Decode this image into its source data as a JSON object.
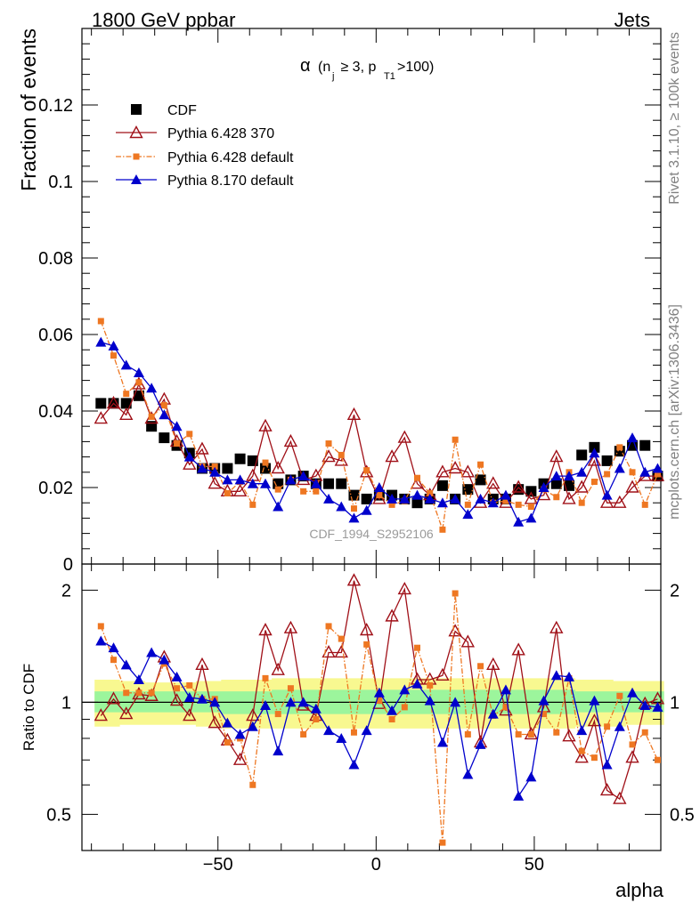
{
  "header": {
    "left": "1800 GeV ppbar",
    "right": "Jets"
  },
  "side_labels": {
    "rivet": "Rivet 3.1.10, ≥ 100k events",
    "mcplots": "mcplots.cern.ch [arXiv:1306.3436]"
  },
  "watermark": "CDF_1994_S2952106",
  "chart_data": [
    {
      "type": "line",
      "panel": "main",
      "title": "α (n_j ≥ 3, p_T1 >100)",
      "title_parts": {
        "alpha": "α",
        "open": "(n",
        "sub_j": "j",
        "mid": " ≥ 3, p",
        "sub_t1": "T1",
        "close": ">100)"
      },
      "xlabel": "alpha",
      "ylabel": "Fraction of events",
      "xlim": [
        -93,
        90
      ],
      "ylim": [
        0,
        0.14
      ],
      "yticks": [
        0,
        0.02,
        0.04,
        0.06,
        0.08,
        0.1,
        0.12
      ],
      "ytick_labels": [
        "0",
        "0.02",
        "0.04",
        "0.06",
        "0.08",
        "0.1",
        "0.12"
      ],
      "x": [
        -87,
        -83,
        -79,
        -75,
        -71,
        -67,
        -63,
        -59,
        -55,
        -51,
        -47,
        -43,
        -39,
        -35,
        -31,
        -27,
        -23,
        -19,
        -15,
        -11,
        -7,
        -3,
        1,
        5,
        9,
        13,
        17,
        21,
        25,
        29,
        33,
        37,
        41,
        45,
        49,
        53,
        57,
        61,
        65,
        69,
        73,
        77,
        81,
        85,
        89
      ],
      "legend": [
        "CDF",
        "Pythia 6.428 370",
        "Pythia 6.428 default",
        "Pythia 8.170 default"
      ],
      "series": [
        {
          "name": "CDF",
          "color": "#000000",
          "values": [
            0.042,
            0.042,
            0.042,
            0.044,
            0.036,
            0.033,
            0.031,
            0.029,
            0.025,
            0.025,
            0.025,
            0.0275,
            0.027,
            0.025,
            0.021,
            0.022,
            0.023,
            0.021,
            0.021,
            0.021,
            0.018,
            0.017,
            0.018,
            0.018,
            0.017,
            0.016,
            0.017,
            0.0205,
            0.017,
            0.0195,
            0.022,
            0.017,
            0.017,
            0.0195,
            0.019,
            0.021,
            0.021,
            0.0205,
            0.0285,
            0.0305,
            0.027,
            0.0295,
            0.031,
            0.031,
            0.023
          ]
        },
        {
          "name": "Pythia 6.428 370",
          "color": "#a01018",
          "values": [
            0.038,
            0.042,
            0.039,
            0.047,
            0.038,
            0.043,
            0.032,
            0.026,
            0.03,
            0.021,
            0.019,
            0.019,
            0.023,
            0.036,
            0.025,
            0.032,
            0.022,
            0.023,
            0.028,
            0.027,
            0.039,
            0.024,
            0.017,
            0.028,
            0.033,
            0.021,
            0.018,
            0.024,
            0.025,
            0.024,
            0.016,
            0.021,
            0.016,
            0.02,
            0.017,
            0.018,
            0.028,
            0.017,
            0.02,
            0.027,
            0.016,
            0.016,
            0.02,
            0.023,
            0.023
          ]
        },
        {
          "name": "Pythia 6.428 default",
          "color": "#ee7722",
          "values": [
            0.0635,
            0.0545,
            0.0445,
            0.0475,
            0.0385,
            0.0415,
            0.0315,
            0.034,
            0.0255,
            0.0255,
            0.0185,
            0.0215,
            0.0155,
            0.0265,
            0.0195,
            0.022,
            0.019,
            0.019,
            0.0315,
            0.0285,
            0.0145,
            0.0245,
            0.018,
            0.0155,
            0.0165,
            0.0225,
            0.0185,
            0.009,
            0.0325,
            0.0155,
            0.026,
            0.016,
            0.0165,
            0.0155,
            0.015,
            0.0195,
            0.0175,
            0.024,
            0.016,
            0.0215,
            0.0235,
            0.0305,
            0.024,
            0.0155,
            0.0235
          ]
        },
        {
          "name": "Pythia 8.170 default",
          "color": "#0000cc",
          "values": [
            0.058,
            0.057,
            0.052,
            0.05,
            0.046,
            0.039,
            0.036,
            0.028,
            0.025,
            0.024,
            0.022,
            0.022,
            0.021,
            0.021,
            0.015,
            0.022,
            0.023,
            0.021,
            0.017,
            0.015,
            0.012,
            0.014,
            0.02,
            0.017,
            0.017,
            0.018,
            0.017,
            0.016,
            0.017,
            0.013,
            0.017,
            0.016,
            0.018,
            0.011,
            0.012,
            0.02,
            0.023,
            0.023,
            0.024,
            0.029,
            0.018,
            0.025,
            0.033,
            0.024,
            0.025
          ]
        }
      ]
    },
    {
      "type": "line",
      "panel": "ratio",
      "xlabel": "alpha",
      "ylabel": "Ratio to CDF",
      "xlim": [
        -93,
        90
      ],
      "ylim": [
        0.4,
        2.35
      ],
      "xticks": [
        -50,
        0,
        50
      ],
      "xtick_labels": [
        "−50",
        "0",
        "50"
      ],
      "yticks": [
        0.5,
        1,
        2
      ],
      "ytick_labels": [
        "0.5",
        "1",
        "2"
      ],
      "x": [
        -87,
        -83,
        -79,
        -75,
        -71,
        -67,
        -63,
        -59,
        -55,
        -51,
        -47,
        -43,
        -39,
        -35,
        -31,
        -27,
        -23,
        -19,
        -15,
        -11,
        -7,
        -3,
        1,
        5,
        9,
        13,
        17,
        21,
        25,
        29,
        33,
        37,
        41,
        45,
        49,
        53,
        57,
        61,
        65,
        69,
        73,
        77,
        81,
        85,
        89
      ],
      "bands": {
        "band_yellow_upper": [
          1.15,
          1.15,
          1.14,
          1.14,
          1.13,
          1.13,
          1.13,
          1.13,
          1.14,
          1.14,
          1.15,
          1.15,
          1.15,
          1.15,
          1.16,
          1.16,
          1.16,
          1.16,
          1.16,
          1.16,
          1.16,
          1.16,
          1.16,
          1.16,
          1.16,
          1.16,
          1.16,
          1.16,
          1.16,
          1.16,
          1.16,
          1.16,
          1.16,
          1.16,
          1.16,
          1.16,
          1.16,
          1.16,
          1.15,
          1.15,
          1.15,
          1.14,
          1.14,
          1.14,
          1.14
        ],
        "band_yellow_lower": [
          0.86,
          0.86,
          0.87,
          0.87,
          0.87,
          0.87,
          0.87,
          0.87,
          0.86,
          0.86,
          0.85,
          0.85,
          0.85,
          0.85,
          0.85,
          0.85,
          0.85,
          0.85,
          0.85,
          0.85,
          0.85,
          0.85,
          0.85,
          0.85,
          0.85,
          0.85,
          0.85,
          0.85,
          0.85,
          0.85,
          0.85,
          0.85,
          0.85,
          0.85,
          0.85,
          0.85,
          0.85,
          0.85,
          0.86,
          0.86,
          0.86,
          0.86,
          0.87,
          0.87,
          0.87
        ],
        "band_green_upper": [
          1.07,
          1.07,
          1.07,
          1.07,
          1.07,
          1.07,
          1.07,
          1.07,
          1.07,
          1.07,
          1.07,
          1.07,
          1.07,
          1.07,
          1.08,
          1.08,
          1.08,
          1.08,
          1.08,
          1.08,
          1.08,
          1.08,
          1.08,
          1.08,
          1.08,
          1.08,
          1.08,
          1.08,
          1.08,
          1.08,
          1.08,
          1.08,
          1.08,
          1.08,
          1.08,
          1.08,
          1.08,
          1.08,
          1.07,
          1.07,
          1.07,
          1.07,
          1.07,
          1.07,
          1.07
        ],
        "band_green_lower": [
          0.94,
          0.94,
          0.94,
          0.94,
          0.94,
          0.94,
          0.94,
          0.94,
          0.94,
          0.94,
          0.93,
          0.93,
          0.93,
          0.93,
          0.93,
          0.93,
          0.93,
          0.93,
          0.93,
          0.93,
          0.93,
          0.93,
          0.93,
          0.93,
          0.93,
          0.93,
          0.93,
          0.93,
          0.93,
          0.93,
          0.93,
          0.93,
          0.93,
          0.93,
          0.93,
          0.93,
          0.93,
          0.93,
          0.94,
          0.94,
          0.94,
          0.94,
          0.94,
          0.94,
          0.94
        ]
      },
      "series": [
        {
          "name": "Pythia 6.428 370",
          "color": "#a01018",
          "values": [
            0.92,
            1.02,
            0.93,
            1.05,
            1.04,
            1.32,
            1.01,
            0.92,
            1.26,
            0.88,
            0.79,
            0.7,
            0.92,
            1.56,
            1.22,
            1.58,
            0.98,
            0.92,
            1.36,
            1.36,
            2.12,
            1.56,
            0.99,
            1.7,
            2.01,
            1.15,
            1.15,
            1.18,
            1.55,
            1.45,
            0.78,
            1.26,
            0.95,
            1.38,
            0.82,
            0.97,
            1.58,
            0.81,
            0.71,
            0.89,
            0.58,
            0.55,
            0.71,
            0.99,
            1.02
          ]
        },
        {
          "name": "Pythia 6.428 default",
          "color": "#ee7722",
          "values": [
            1.6,
            1.3,
            1.06,
            1.06,
            1.06,
            1.27,
            1.09,
            1.11,
            1.02,
            1.02,
            0.78,
            0.8,
            0.6,
            1.16,
            0.93,
            1.09,
            0.82,
            0.9,
            1.6,
            1.48,
            0.83,
            1.43,
            1.01,
            0.9,
            0.97,
            1.4,
            1.11,
            0.42,
            1.96,
            0.82,
            1.25,
            0.92,
            0.97,
            0.82,
            0.82,
            0.93,
            0.83,
            1.16,
            0.74,
            0.71,
            0.86,
            1.04,
            0.77,
            0.83,
            0.7
          ]
        },
        {
          "name": "Pythia 8.170 default",
          "color": "#0000cc",
          "values": [
            1.46,
            1.4,
            1.26,
            1.15,
            1.36,
            1.3,
            1.17,
            1.03,
            1.02,
            1.0,
            0.88,
            0.82,
            0.86,
            0.98,
            0.74,
            1.0,
            1.0,
            0.96,
            0.84,
            0.8,
            0.68,
            0.84,
            1.06,
            0.95,
            1.08,
            1.12,
            1.01,
            0.78,
            1.0,
            0.64,
            0.77,
            0.93,
            1.08,
            0.56,
            0.63,
            1.01,
            1.18,
            1.17,
            0.84,
            1.01,
            0.68,
            0.86,
            1.06,
            0.98,
            0.97
          ]
        }
      ]
    }
  ]
}
